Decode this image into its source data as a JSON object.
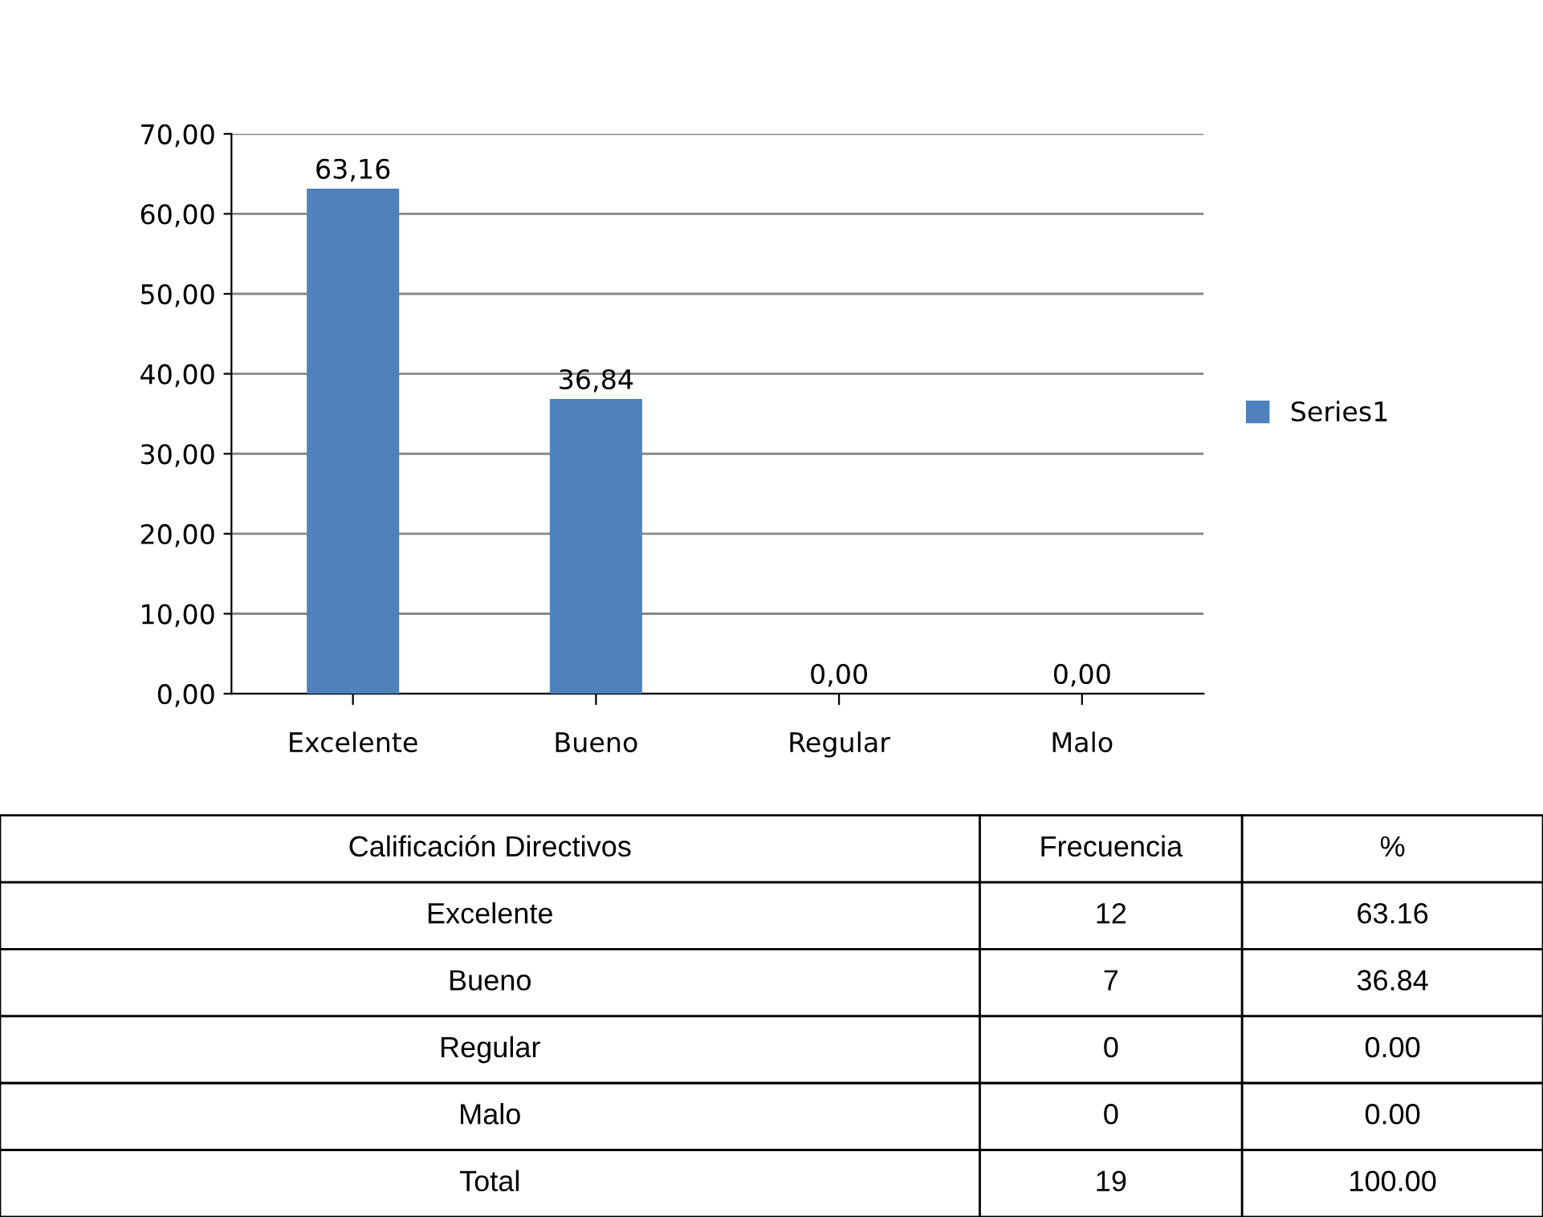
{
  "chart_data": {
    "type": "bar",
    "categories": [
      "Excelente",
      "Bueno",
      "Regular",
      "Malo"
    ],
    "series": [
      {
        "name": "Series1",
        "color": "#4f81bd",
        "values": [
          63.16,
          36.84,
          0.0,
          0.0
        ],
        "value_labels": [
          "63,16",
          "36,84",
          "0,00",
          "0,00"
        ]
      }
    ],
    "ylim": [
      0,
      70
    ],
    "yticks": [
      {
        "value": 0,
        "label": "0,00"
      },
      {
        "value": 10,
        "label": "10,00"
      },
      {
        "value": 20,
        "label": "20,00"
      },
      {
        "value": 30,
        "label": "30,00"
      },
      {
        "value": 40,
        "label": "40,00"
      },
      {
        "value": 50,
        "label": "50,00"
      },
      {
        "value": 60,
        "label": "60,00"
      },
      {
        "value": 70,
        "label": "70,00"
      }
    ],
    "grid": "y",
    "legend": "right",
    "annotations": [
      "Calificación Directivos",
      "Frecuencia",
      "%",
      "Excelente",
      "12",
      "63.16",
      "Bueno",
      "7",
      "36.84",
      "Regular",
      "0",
      "0.00",
      "Malo",
      "0",
      "0.00",
      "Total",
      "19",
      "100.00"
    ]
  }
}
